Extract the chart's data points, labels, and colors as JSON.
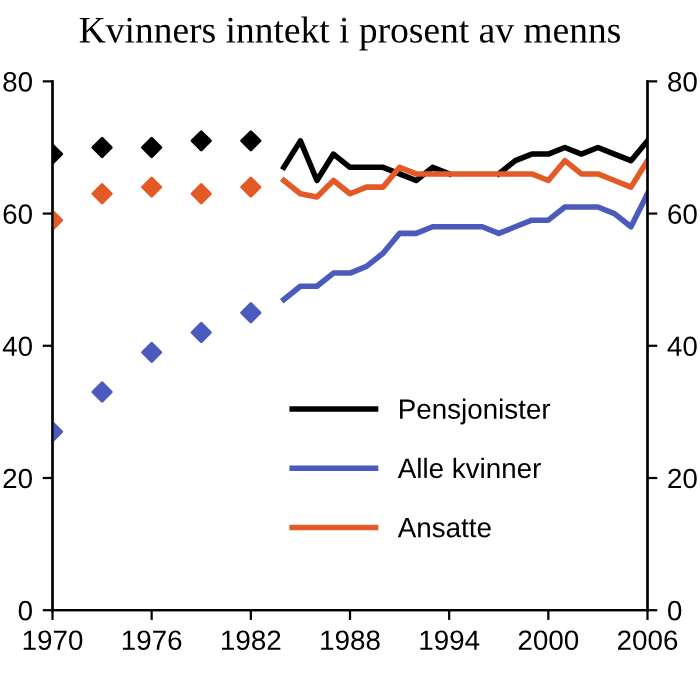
{
  "chart_data": {
    "type": "line",
    "title": "Kvinners inntekt i prosent av menns",
    "x": [
      1984,
      1985,
      1986,
      1987,
      1988,
      1989,
      1990,
      1991,
      1992,
      1993,
      1994,
      1995,
      1996,
      1997,
      1998,
      1999,
      2000,
      2001,
      2002,
      2003,
      2004,
      2005,
      2006
    ],
    "series": [
      {
        "type": "scatter",
        "marker": "diamond",
        "color": "#000000",
        "x": [
          1970,
          1973,
          1976,
          1979,
          1982
        ],
        "values": [
          69,
          70,
          70,
          71,
          71
        ]
      },
      {
        "type": "scatter",
        "marker": "diamond",
        "color": "#e35a26",
        "x": [
          1970,
          1973,
          1976,
          1979,
          1982
        ],
        "values": [
          59,
          63,
          64,
          63,
          64
        ]
      },
      {
        "type": "scatter",
        "marker": "diamond",
        "color": "#4a5bbd",
        "x": [
          1970,
          1973,
          1976,
          1979,
          1982
        ],
        "values": [
          27,
          33,
          39,
          42,
          45
        ]
      },
      {
        "name": "Pensjonister",
        "color": "#000000",
        "values": [
          67,
          71,
          65,
          69,
          67,
          67,
          67,
          66,
          65,
          67,
          66,
          null,
          null,
          66,
          68,
          69,
          69,
          70,
          69,
          70,
          69,
          68,
          71
        ]
      },
      {
        "name": "Alle kvinner",
        "color": "#4a5bbd",
        "values": [
          47,
          49,
          49,
          51,
          51,
          52,
          54,
          57,
          57,
          58,
          58,
          58,
          58,
          57,
          58,
          59,
          59,
          61,
          61,
          61,
          60,
          58,
          63
        ]
      },
      {
        "name": "Ansatte",
        "color": "#e35a26",
        "values": [
          65,
          63,
          62.5,
          65,
          63,
          64,
          64,
          67,
          66,
          66,
          66,
          66,
          66,
          66,
          66,
          66,
          65,
          68,
          66,
          66,
          65,
          64,
          68
        ]
      }
    ],
    "xlim": [
      1970,
      2006
    ],
    "xticks": [
      1970,
      1976,
      1982,
      1988,
      1994,
      2000,
      2006
    ],
    "ylim": [
      0,
      80
    ],
    "yticks": [
      0,
      20,
      40,
      60,
      80
    ],
    "y2lim": [
      0,
      80
    ],
    "y2ticks": [
      0,
      20,
      40,
      60,
      80
    ],
    "grid": false,
    "legend": "bottom",
    "marker": "none",
    "line_style": "solid"
  }
}
